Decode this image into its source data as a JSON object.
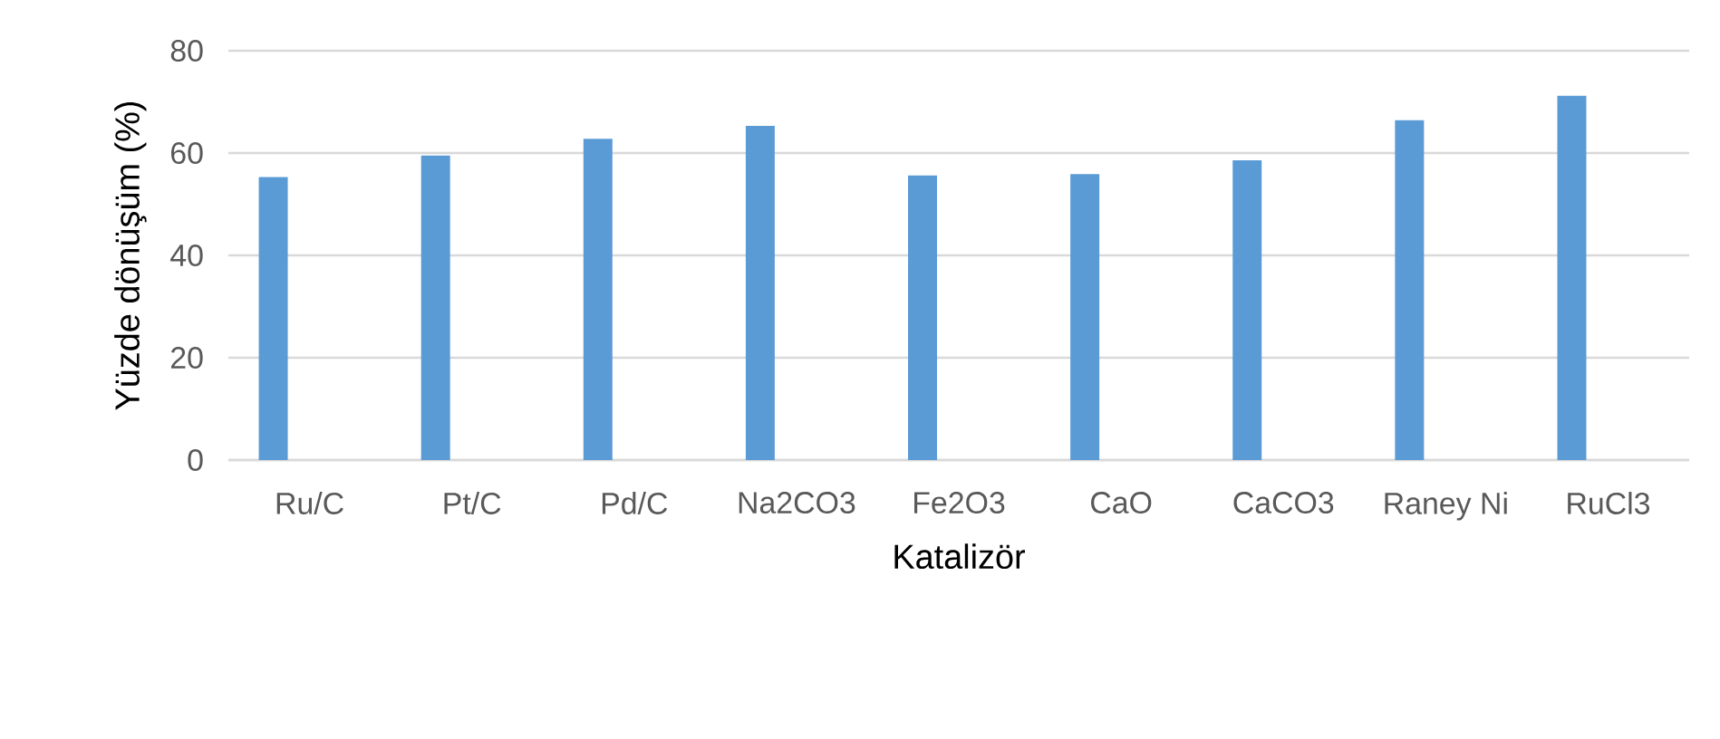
{
  "chart_data": {
    "type": "bar",
    "xlabel": "Katalizör",
    "ylabel": "Yüzde dönüşüm (%)",
    "categories": [
      "Ru/C",
      "Pt/C",
      "Pd/C",
      "Na2CO3",
      "Fe2O3",
      "CaO",
      "CaCO3",
      "Raney Ni",
      "RuCl3"
    ],
    "values": [
      55.3,
      59.5,
      62.8,
      65.3,
      55.6,
      55.9,
      58.6,
      66.4,
      71.2
    ],
    "color": "#5b9bd5",
    "ylim": [
      0,
      80
    ],
    "yticks": [
      0,
      20,
      40,
      60,
      80
    ],
    "grid": "y"
  }
}
